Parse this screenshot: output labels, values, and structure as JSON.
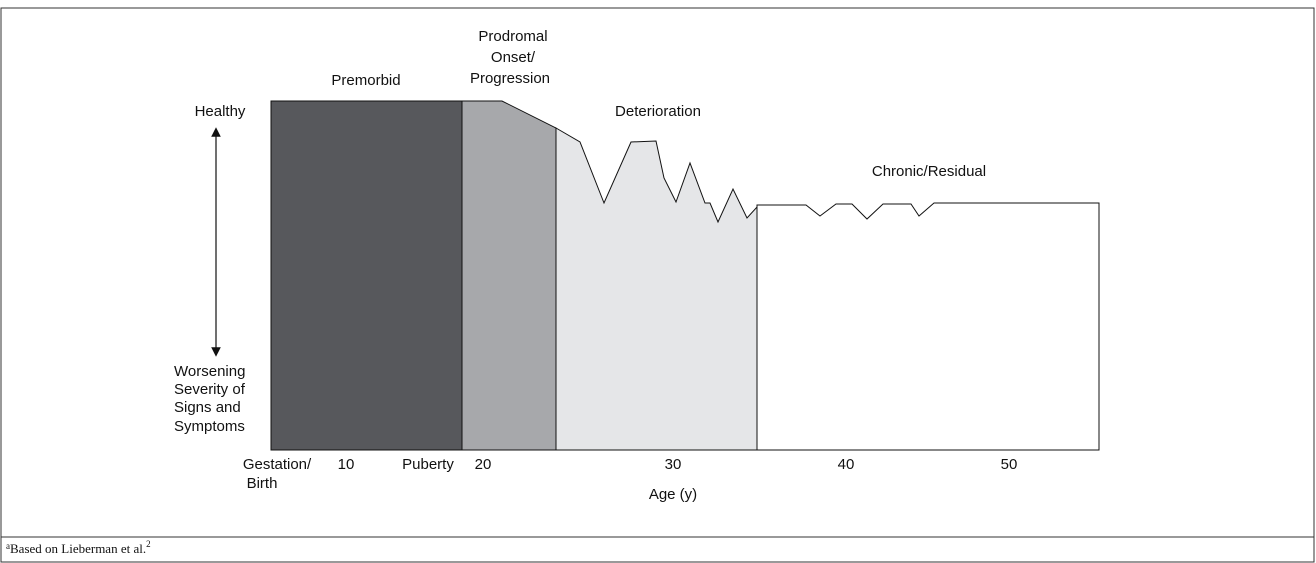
{
  "stages": [
    {
      "lines": [
        "Premorbid"
      ]
    },
    {
      "lines": [
        "Prodromal",
        "Onset/",
        "Progression"
      ]
    },
    {
      "lines": [
        "Deterioration"
      ]
    },
    {
      "lines": [
        "Chronic/Residual"
      ]
    }
  ],
  "y_axis": {
    "top": "Healthy",
    "bottom": [
      "Worsening",
      "Severity of",
      "Signs and",
      "Symptoms"
    ]
  },
  "x_axis": {
    "ticks": [
      [
        "Gestation/",
        "Birth"
      ],
      [
        "10"
      ],
      [
        "Puberty"
      ],
      [
        "20"
      ],
      [
        "30"
      ],
      [
        "40"
      ],
      [
        "50"
      ]
    ],
    "label": "Age (y)"
  },
  "footnote": {
    "mark": "a",
    "text": "Based on Lieberman et al.",
    "ref": "2"
  }
}
